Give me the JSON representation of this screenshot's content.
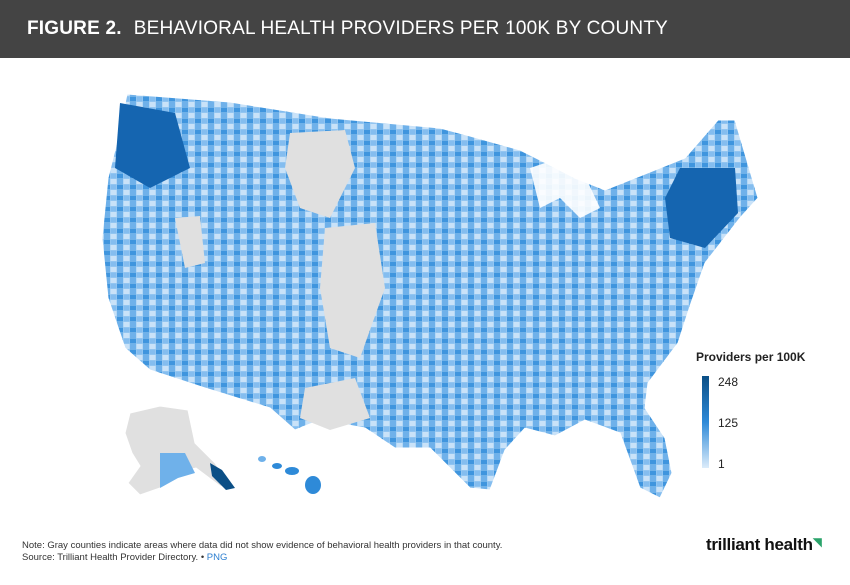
{
  "header": {
    "figure_label": "FIGURE 2.",
    "title": "BEHAVIORAL HEALTH PROVIDERS PER 100K BY COUNTY"
  },
  "legend": {
    "title": "Providers per 100K",
    "max": "248",
    "mid": "125",
    "min": "1"
  },
  "colors": {
    "no_data": "#e0e0e0",
    "low": "#dcecfa",
    "mid": "#2e8ad8",
    "high": "#0b4f86"
  },
  "footer": {
    "note": "Note: Gray counties indicate areas where data did not show evidence of behavioral health providers in that county.",
    "source": "Source: Trilliant Health Provider Directory.",
    "separator": "•",
    "link": "PNG"
  },
  "logo": {
    "text": "trilliant health"
  },
  "regions": [
    "Contiguous United States",
    "Alaska",
    "Hawaii"
  ]
}
